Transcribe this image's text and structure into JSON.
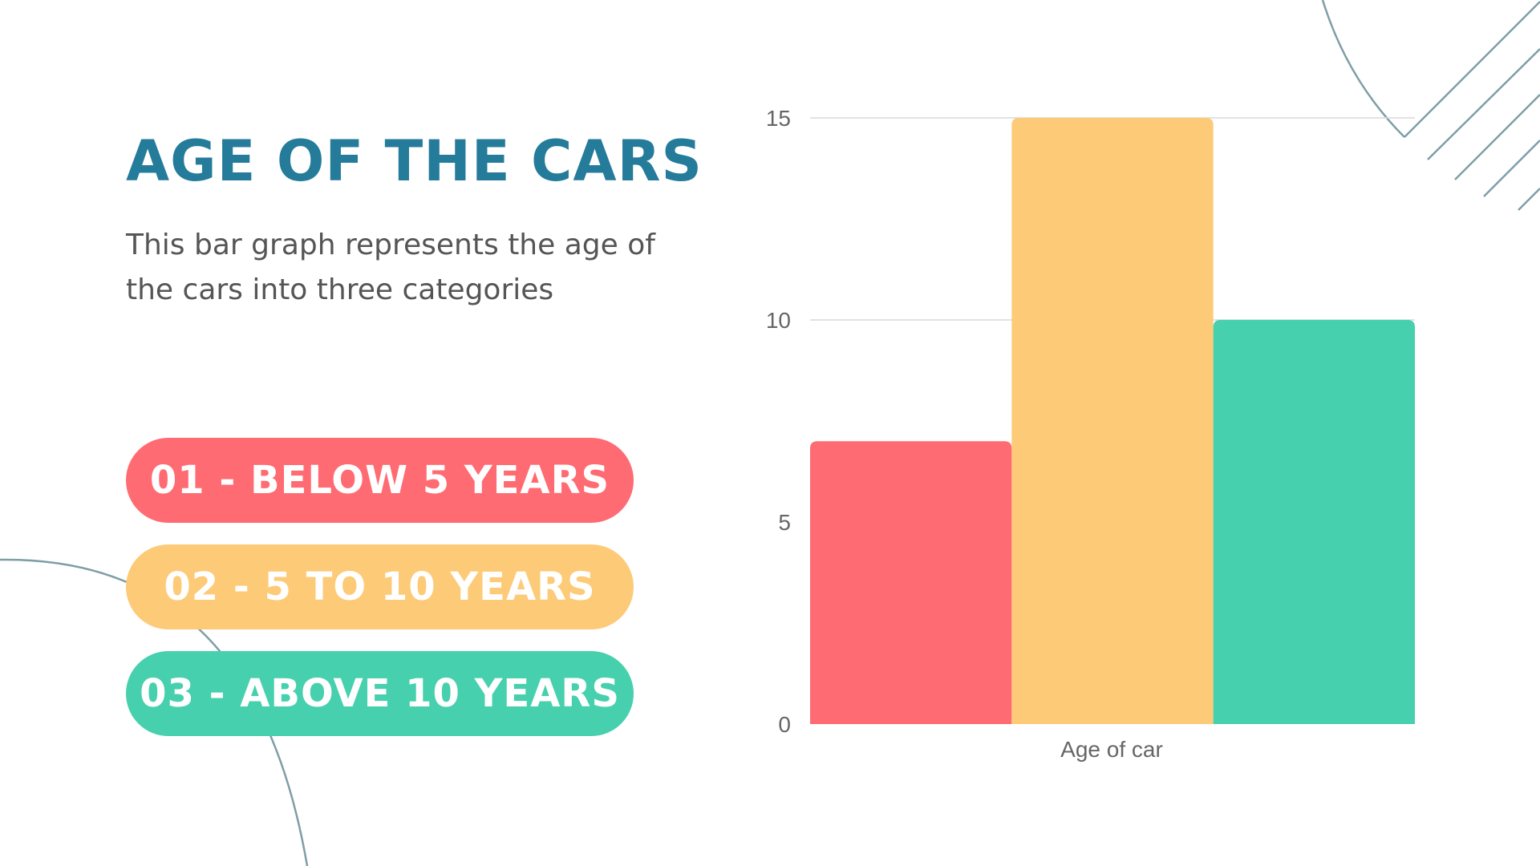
{
  "slide": {
    "title": "AGE OF THE CARS",
    "subtitle": "This bar graph represents the age of the cars into three categories"
  },
  "legend_pills": [
    {
      "label": "01 - BELOW 5 YEARS",
      "color": "#ff6b73"
    },
    {
      "label": "02 - 5 TO 10 YEARS",
      "color": "#fdca78"
    },
    {
      "label": "03 - ABOVE 10 YEARS",
      "color": "#47d0ae"
    }
  ],
  "colors": {
    "title": "#257b9a",
    "subtitle": "#555555",
    "decor_lines": "#7e9ea6",
    "grid": "#d9d9d9"
  },
  "chart_data": {
    "type": "bar",
    "categories": [
      "Age of car"
    ],
    "series": [
      {
        "values": [
          7
        ],
        "color": "#ff6b73"
      },
      {
        "values": [
          15
        ],
        "color": "#fdca78"
      },
      {
        "values": [
          10
        ],
        "color": "#47d0ae"
      }
    ],
    "xlabel": "",
    "ylabel": "",
    "ylim": [
      0,
      15
    ],
    "yticks": [
      0,
      5,
      10,
      15
    ],
    "grid": true
  }
}
